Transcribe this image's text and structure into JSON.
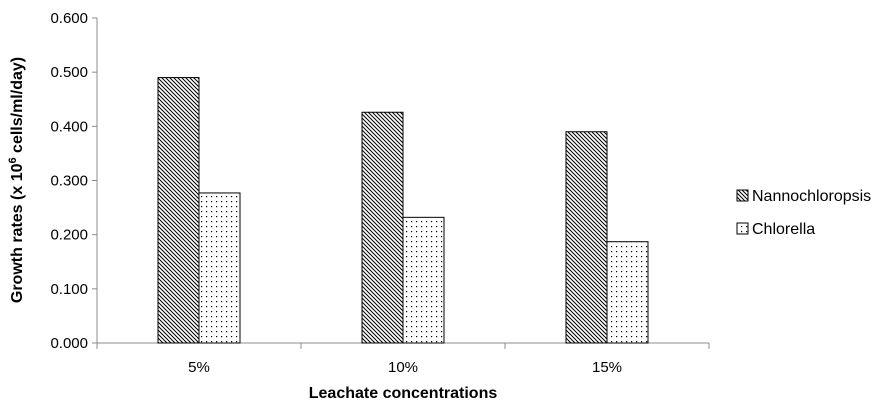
{
  "chart_data": {
    "type": "bar",
    "categories": [
      "5%",
      "10%",
      "15%"
    ],
    "series": [
      {
        "name": "Nannochloropsis",
        "values": [
          0.49,
          0.426,
          0.39
        ],
        "pattern": "diagonal-hatch"
      },
      {
        "name": "Chlorella",
        "values": [
          0.277,
          0.232,
          0.187
        ],
        "pattern": "dots"
      }
    ],
    "title": "",
    "xlabel": "Leachate concentrations",
    "ylabel_parts": {
      "before": "Growth rates (x 10",
      "sup": "6",
      "after": " cells/ml/day)"
    },
    "ylim": [
      0,
      0.6
    ],
    "yticks": [
      0,
      0.1,
      0.2,
      0.3,
      0.4,
      0.5,
      0.6
    ],
    "ytick_labels": [
      "0.000",
      "0.100",
      "0.200",
      "0.300",
      "0.400",
      "0.500",
      "0.600"
    ],
    "grid": false,
    "legend_position": "right"
  }
}
